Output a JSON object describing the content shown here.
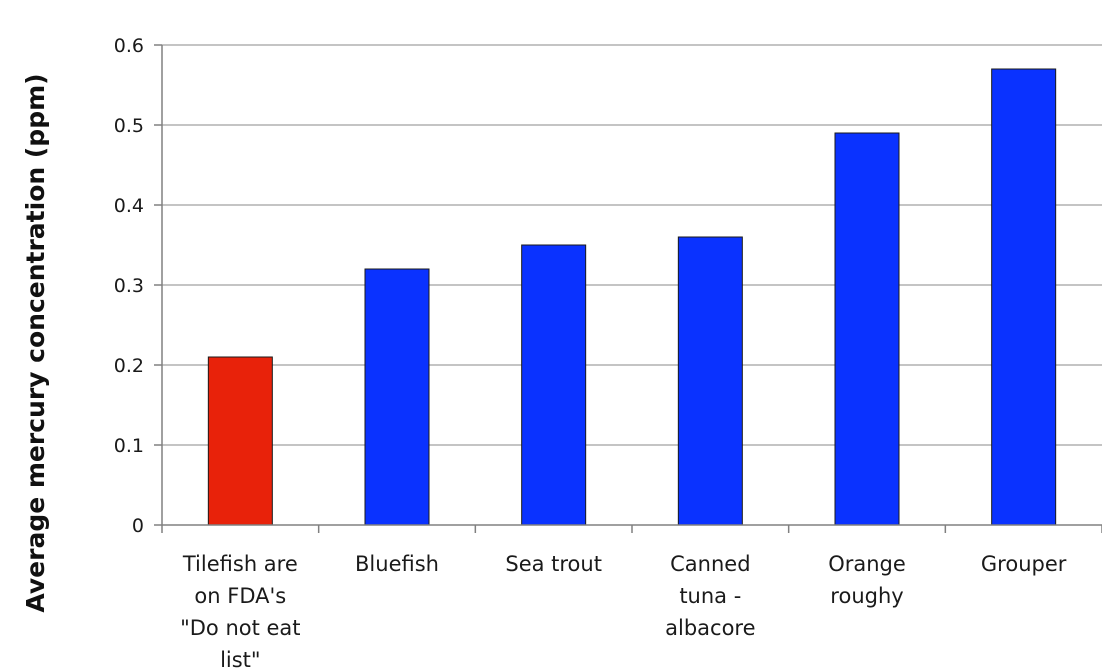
{
  "chart_data": {
    "type": "bar",
    "title": "",
    "xlabel": "",
    "ylabel": "Average mercury concentration (ppm)",
    "ylim": [
      0,
      0.6
    ],
    "yticks": [
      "0",
      "0.1",
      "0.2",
      "0.3",
      "0.4",
      "0.5",
      "0.6"
    ],
    "grid": true,
    "legend": "none",
    "categories": [
      [
        "Tilefish are",
        "on FDA's",
        "\"Do not eat",
        "list\""
      ],
      [
        "Bluefish"
      ],
      [
        "Sea trout"
      ],
      [
        "Canned",
        "tuna -",
        "albacore"
      ],
      [
        "Orange",
        "roughy"
      ],
      [
        "Grouper"
      ]
    ],
    "values": [
      0.21,
      0.32,
      0.35,
      0.36,
      0.49,
      0.57
    ],
    "colors": [
      "#e8220a",
      "#0a32ff",
      "#0a32ff",
      "#0a32ff",
      "#0a32ff",
      "#0a32ff"
    ],
    "grid_color": "#b0b0b0",
    "axis_color": "#808080"
  }
}
